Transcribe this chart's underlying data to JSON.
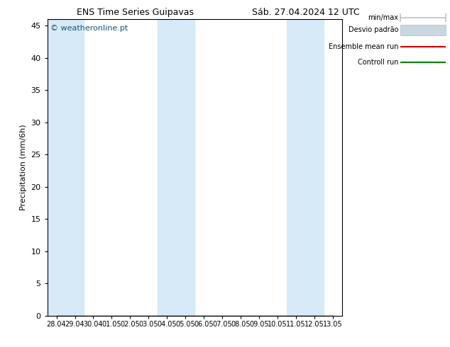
{
  "title_left": "ENS Time Series Guipavas",
  "title_right": "Sáb. 27.04.2024 12 UTC",
  "ylabel": "Precipitation (mm/6h)",
  "watermark": "© weatheronline.pt",
  "watermark_color": "#1a5276",
  "background_color": "#ffffff",
  "plot_bg_color": "#ffffff",
  "band_color": "#d6eaf8",
  "ylim": [
    0,
    46
  ],
  "yticks": [
    0,
    5,
    10,
    15,
    20,
    25,
    30,
    35,
    40,
    45
  ],
  "xtick_labels": [
    "28.04",
    "29.04",
    "30.04",
    "01.05",
    "02.05",
    "03.05",
    "04.05",
    "05.05",
    "06.05",
    "07.05",
    "08.05",
    "09.05",
    "10.05",
    "11.05",
    "12.05",
    "13.05"
  ],
  "shaded_bands": [
    0,
    1,
    6,
    7,
    13,
    14
  ],
  "line_color_ensemble": "#cc0000",
  "line_color_control": "#008000",
  "legend_gray": "#c0c0c0",
  "legend_std_color": "#c8d8e0",
  "figsize": [
    6.34,
    4.9
  ],
  "dpi": 100
}
